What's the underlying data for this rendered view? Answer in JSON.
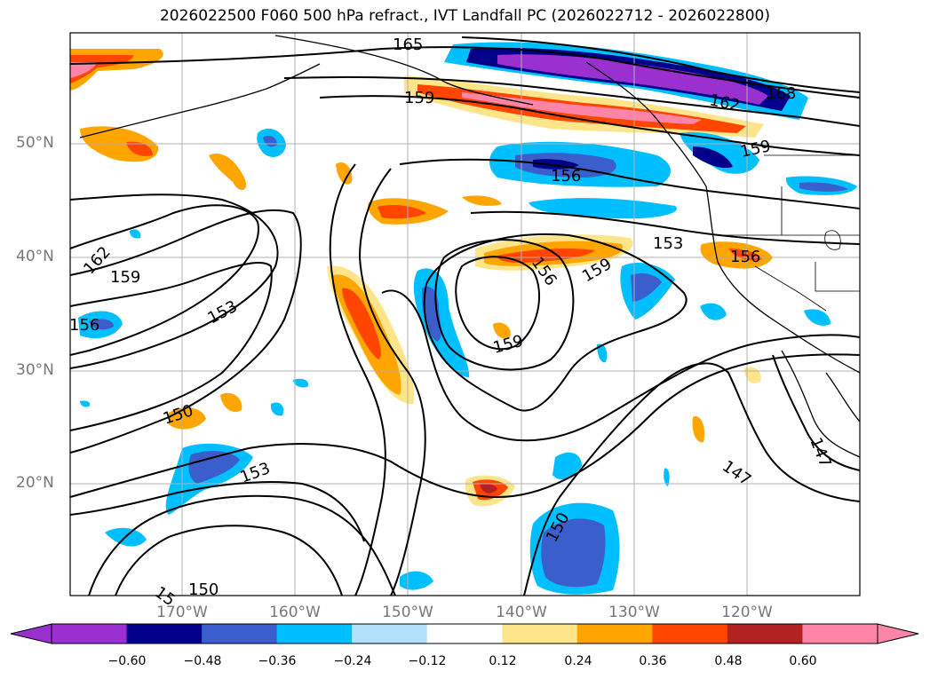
{
  "title": "2026022500 F060 500 hPa refract., IVT Landfall PC (2026022712 - 2026022800)",
  "lat_labels": [
    "50°N",
    "40°N",
    "30°N",
    "20°N"
  ],
  "lon_labels": [
    "170°W",
    "160°W",
    "150°W",
    "140°W",
    "130°W",
    "120°W"
  ],
  "contour_labels": [
    "165",
    "159",
    "162",
    "168",
    "159",
    "156",
    "153",
    "156",
    "162",
    "159",
    "153",
    "156",
    "156",
    "159",
    "159",
    "150",
    "153",
    "150",
    "150",
    "15",
    "147",
    "147"
  ],
  "colorbar": {
    "ticks": [
      "−0.60",
      "−0.48",
      "−0.36",
      "−0.24",
      "−0.12",
      "0.12",
      "0.24",
      "0.36",
      "0.48",
      "0.60"
    ],
    "colors": [
      "#9b30d0",
      "#00008b",
      "#3a5fcd",
      "#00bfff",
      "#b2e2fb",
      "#ffffff",
      "#ffe58a",
      "#ffa500",
      "#ff4500",
      "#b22222",
      "#ff85a8"
    ]
  },
  "palette": {
    "purple": "#9b30d0",
    "navy": "#00008b",
    "blue": "#3a5fcd",
    "sky": "#00bfff",
    "light": "#b2e2fb",
    "yellow": "#ffe58a",
    "orange": "#ffa500",
    "red": "#ff4500",
    "darkred": "#b22222",
    "pink": "#ff85a8"
  }
}
